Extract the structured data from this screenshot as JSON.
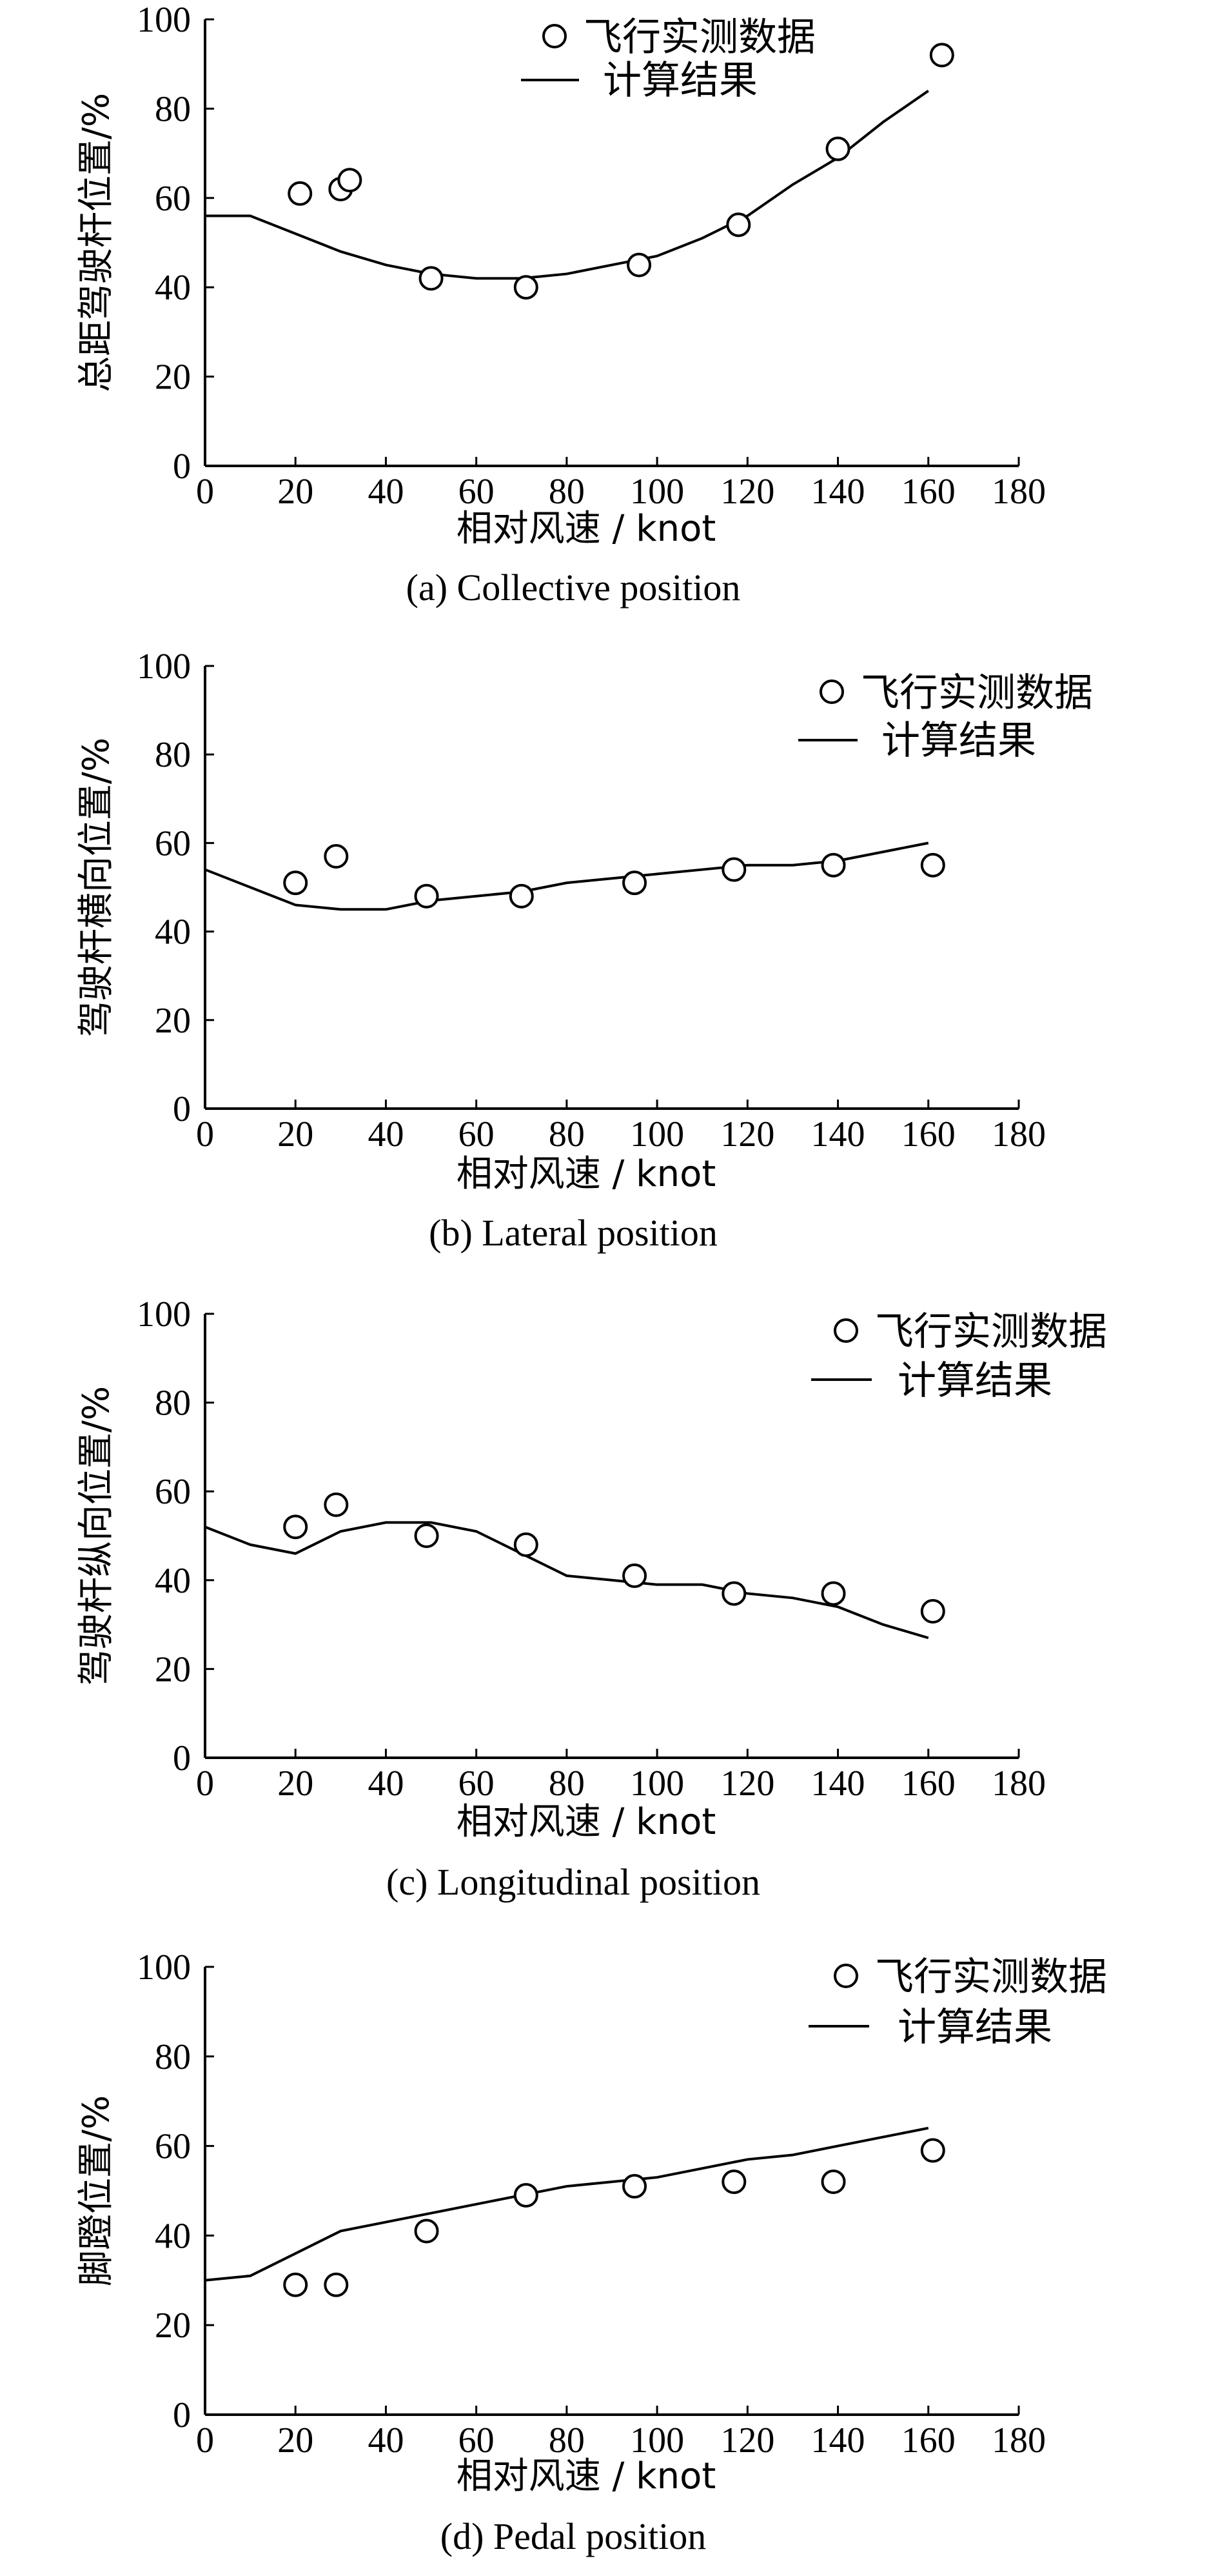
{
  "chart_data": [
    {
      "type": "line",
      "caption": "(a) Collective position",
      "xlabel": "相对风速 / knot",
      "ylabel": "总距驾驶杆位置/%",
      "xlim": [
        0,
        180
      ],
      "ylim": [
        0,
        100
      ],
      "xticks": [
        0,
        20,
        40,
        60,
        80,
        100,
        120,
        140,
        160,
        180
      ],
      "yticks": [
        0,
        20,
        40,
        60,
        80,
        100
      ],
      "legend": {
        "position": "top-right",
        "measured_label": "飞行实测数据",
        "computed_label": "计算结果"
      },
      "series": [
        {
          "name": "飞行实测数据",
          "marker": "circle",
          "x": [
            21,
            30,
            32,
            50,
            71,
            96,
            118,
            140,
            163
          ],
          "y": [
            61,
            62,
            64,
            42,
            40,
            45,
            54,
            71,
            92
          ]
        },
        {
          "name": "计算结果",
          "style": "line",
          "x": [
            0,
            10,
            20,
            30,
            40,
            50,
            60,
            70,
            80,
            90,
            100,
            110,
            120,
            130,
            140,
            150,
            160
          ],
          "y": [
            56,
            56,
            52,
            48,
            45,
            43,
            42,
            42,
            43,
            45,
            47,
            51,
            56,
            63,
            69,
            77,
            84
          ]
        }
      ]
    },
    {
      "type": "line",
      "caption": "(b) Lateral position",
      "xlabel": "相对风速 / knot",
      "ylabel": "驾驶杆横向位置/%",
      "xlim": [
        0,
        180
      ],
      "ylim": [
        0,
        100
      ],
      "xticks": [
        0,
        20,
        40,
        60,
        80,
        100,
        120,
        140,
        160,
        180
      ],
      "yticks": [
        0,
        20,
        40,
        60,
        80,
        100
      ],
      "legend": {
        "position": "top-right",
        "measured_label": "飞行实测数据",
        "computed_label": "计算结果"
      },
      "series": [
        {
          "name": "飞行实测数据",
          "marker": "circle",
          "x": [
            20,
            29,
            49,
            70,
            95,
            117,
            139,
            161
          ],
          "y": [
            51,
            57,
            48,
            48,
            51,
            54,
            55,
            55
          ]
        },
        {
          "name": "计算结果",
          "style": "line",
          "x": [
            0,
            10,
            20,
            30,
            40,
            50,
            60,
            70,
            80,
            90,
            100,
            110,
            120,
            130,
            140,
            150,
            160
          ],
          "y": [
            54,
            50,
            46,
            45,
            45,
            47,
            48,
            49,
            51,
            52,
            53,
            54,
            55,
            55,
            56,
            58,
            60
          ]
        }
      ]
    },
    {
      "type": "line",
      "caption": "(c) Longitudinal position",
      "xlabel": "相对风速 / knot",
      "ylabel": "驾驶杆纵向位置/%",
      "xlim": [
        0,
        180
      ],
      "ylim": [
        0,
        100
      ],
      "xticks": [
        0,
        20,
        40,
        60,
        80,
        100,
        120,
        140,
        160,
        180
      ],
      "yticks": [
        0,
        20,
        40,
        60,
        80,
        100
      ],
      "legend": {
        "position": "top-right",
        "measured_label": "飞行实测数据",
        "computed_label": "计算结果"
      },
      "series": [
        {
          "name": "飞行实测数据",
          "marker": "circle",
          "x": [
            20,
            29,
            49,
            71,
            95,
            117,
            139,
            161
          ],
          "y": [
            52,
            57,
            50,
            48,
            41,
            37,
            37,
            33
          ]
        },
        {
          "name": "计算结果",
          "style": "line",
          "x": [
            0,
            10,
            20,
            30,
            40,
            50,
            60,
            70,
            80,
            90,
            100,
            110,
            120,
            130,
            140,
            150,
            160
          ],
          "y": [
            52,
            48,
            46,
            51,
            53,
            53,
            51,
            46,
            41,
            40,
            39,
            39,
            37,
            36,
            34,
            30,
            27
          ]
        }
      ]
    },
    {
      "type": "line",
      "caption": "(d) Pedal position",
      "xlabel": "相对风速 / knot",
      "ylabel": "脚蹬位置/%",
      "xlim": [
        0,
        180
      ],
      "ylim": [
        0,
        100
      ],
      "xticks": [
        0,
        20,
        40,
        60,
        80,
        100,
        120,
        140,
        160,
        180
      ],
      "yticks": [
        0,
        20,
        40,
        60,
        80,
        100
      ],
      "legend": {
        "position": "top-right",
        "measured_label": "飞行实测数据",
        "computed_label": "计算结果"
      },
      "series": [
        {
          "name": "飞行实测数据",
          "marker": "circle",
          "x": [
            20,
            29,
            49,
            71,
            95,
            117,
            139,
            161
          ],
          "y": [
            29,
            29,
            41,
            49,
            51,
            52,
            52,
            59
          ]
        },
        {
          "name": "计算结果",
          "style": "line",
          "x": [
            0,
            10,
            20,
            30,
            40,
            50,
            60,
            70,
            80,
            90,
            100,
            110,
            120,
            130,
            140,
            150,
            160
          ],
          "y": [
            30,
            31,
            36,
            41,
            43,
            45,
            47,
            49,
            51,
            52,
            53,
            55,
            57,
            58,
            60,
            62,
            64
          ]
        }
      ]
    }
  ]
}
